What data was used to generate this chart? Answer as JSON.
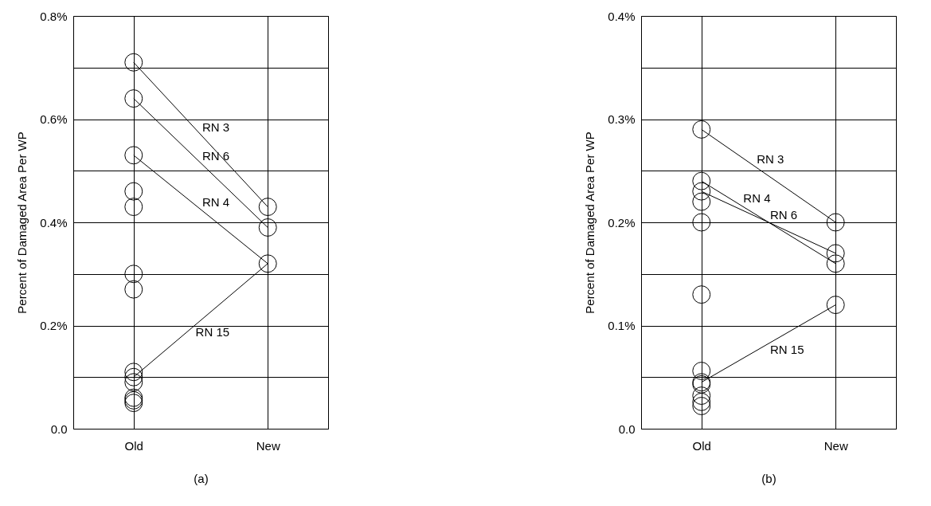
{
  "chart_data": [
    {
      "type": "scatter",
      "xlabel": "(a)",
      "ylabel": "Percent of Damaged Area Per WP",
      "categories": [
        "Old",
        "New"
      ],
      "ylim": [
        0,
        0.8
      ],
      "yticks": [
        {
          "value": 0,
          "label": "0.0"
        },
        {
          "value": 0.1,
          "label": null
        },
        {
          "value": 0.2,
          "label": "0.2%"
        },
        {
          "value": 0.3,
          "label": null
        },
        {
          "value": 0.4,
          "label": "0.4%"
        },
        {
          "value": 0.5,
          "label": null
        },
        {
          "value": 0.6,
          "label": "0.6%"
        },
        {
          "value": 0.7,
          "label": null
        },
        {
          "value": 0.8,
          "label": "0.8%"
        }
      ],
      "grid": true,
      "legend": false,
      "series": [
        {
          "type": "scatter",
          "marker": "circle",
          "color": "#000000",
          "x": [
            "Old",
            "Old",
            "Old",
            "Old",
            "Old",
            "Old",
            "Old",
            "Old",
            "Old",
            "Old",
            "Old",
            "Old",
            "Old"
          ],
          "values": [
            0.71,
            0.64,
            0.53,
            0.46,
            0.43,
            0.3,
            0.27,
            0.11,
            0.1,
            0.09,
            0.06,
            0.055,
            0.05
          ]
        },
        {
          "type": "scatter",
          "marker": "circle",
          "color": "#000000",
          "x": [
            "New",
            "New",
            "New"
          ],
          "values": [
            0.43,
            0.39,
            0.32
          ]
        },
        {
          "type": "line",
          "marker": "none",
          "name": "RN 3",
          "color": "#000000",
          "x": [
            "Old",
            "New"
          ],
          "values": [
            0.71,
            0.43
          ]
        },
        {
          "type": "line",
          "marker": "none",
          "name": "RN 6",
          "color": "#000000",
          "x": [
            "Old",
            "New"
          ],
          "values": [
            0.64,
            0.39
          ]
        },
        {
          "type": "line",
          "marker": "none",
          "name": "RN 4",
          "color": "#000000",
          "x": [
            "Old",
            "New"
          ],
          "values": [
            0.53,
            0.32
          ]
        },
        {
          "type": "line",
          "marker": "none",
          "name": "RN 15",
          "color": "#000000",
          "x": [
            "Old",
            "New"
          ],
          "values": [
            0.1,
            0.32
          ]
        }
      ]
    },
    {
      "type": "scatter",
      "xlabel": "(b)",
      "ylabel": "Percent of Damaged Area Per WP",
      "categories": [
        "Old",
        "New"
      ],
      "ylim": [
        0,
        0.4
      ],
      "yticks": [
        {
          "value": 0,
          "label": "0.0"
        },
        {
          "value": 0.05,
          "label": null
        },
        {
          "value": 0.1,
          "label": "0.1%"
        },
        {
          "value": 0.15,
          "label": null
        },
        {
          "value": 0.2,
          "label": "0.2%"
        },
        {
          "value": 0.25,
          "label": null
        },
        {
          "value": 0.3,
          "label": "0.3%"
        },
        {
          "value": 0.35,
          "label": null
        },
        {
          "value": 0.4,
          "label": "0.4%"
        }
      ],
      "grid": true,
      "legend": false,
      "series": [
        {
          "type": "scatter",
          "marker": "circle",
          "color": "#000000",
          "x": [
            "Old",
            "Old",
            "Old",
            "Old",
            "Old",
            "Old",
            "Old",
            "Old",
            "Old",
            "Old"
          ],
          "values": [
            0.29,
            0.24,
            0.23,
            0.22,
            0.2,
            0.13,
            0.056,
            0.045,
            0.043,
            0.032
          ]
        },
        {
          "type": "scatter",
          "marker": "circle",
          "color": "#000000",
          "x": [
            "Old",
            "Old"
          ],
          "values": [
            0.026,
            0.022
          ]
        },
        {
          "type": "scatter",
          "marker": "circle",
          "color": "#000000",
          "x": [
            "New",
            "New",
            "New",
            "New"
          ],
          "values": [
            0.2,
            0.17,
            0.16,
            0.12
          ]
        },
        {
          "type": "line",
          "marker": "none",
          "name": "RN 3",
          "color": "#000000",
          "x": [
            "Old",
            "New"
          ],
          "values": [
            0.29,
            0.2
          ]
        },
        {
          "type": "line",
          "marker": "none",
          "name": "RN 6",
          "color": "#000000",
          "x": [
            "Old",
            "New"
          ],
          "values": [
            0.23,
            0.17
          ]
        },
        {
          "type": "line",
          "marker": "none",
          "name": "RN 4",
          "color": "#000000",
          "x": [
            "Old",
            "New"
          ],
          "values": [
            0.24,
            0.16
          ]
        },
        {
          "type": "line",
          "marker": "none",
          "name": "RN 15",
          "color": "#000000",
          "x": [
            "Old",
            "New"
          ],
          "values": [
            0.045,
            0.12
          ]
        }
      ]
    }
  ]
}
